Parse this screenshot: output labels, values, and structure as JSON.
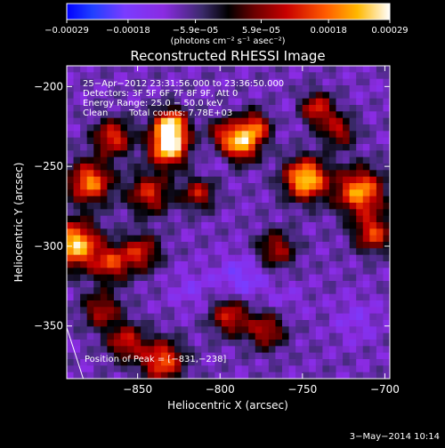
{
  "chart_data": {
    "type": "heatmap",
    "title": "Reconstructed RHESSI Image",
    "xlabel": "Heliocentric X (arcsec)",
    "ylabel": "Heliocentric Y (arcsec)",
    "xlim": [
      -893,
      -697
    ],
    "ylim": [
      -383,
      -187
    ],
    "x_ticks": [
      -850,
      -800,
      -750,
      -700
    ],
    "y_ticks": [
      -200,
      -250,
      -300,
      -350
    ],
    "x_tick_labels": [
      "−850",
      "−800",
      "−750",
      "−700"
    ],
    "y_tick_labels": [
      "−200",
      "−250",
      "−300",
      "−350"
    ],
    "colorbar": {
      "range": [
        -0.00029,
        0.00029
      ],
      "tick_values": [
        -0.00029,
        -0.00018,
        -5.9e-05,
        5.9e-05,
        0.00018,
        0.00029
      ],
      "tick_labels": [
        "−0.00029",
        "−0.00018",
        "−5.9e−05",
        "5.9e−05",
        "0.00018",
        "0.00029"
      ],
      "label": "(photons cm⁻² s⁻¹ asec⁻²)",
      "colormap": "rainbow-to-hot"
    },
    "annotations": {
      "time_range": "25−Apr−2012 23:31:56.000 to 23:36:50.000",
      "detectors": "Detectors: 3F 5F 6F 7F 8F 9F, Att 0",
      "energy_range": "Energy Range: 25.0 − 50.0 keV",
      "clean_label": "Clean",
      "total_counts": "Total counts: 7.78E+03",
      "peak_position": "Position of Peak = [−831,−238]"
    },
    "limb_line": {
      "x": [
        -893,
        -883
      ],
      "y": [
        -351,
        -383
      ]
    },
    "hotspots": [
      {
        "x": -831,
        "y": -238,
        "intensity": 0.00029,
        "spread": 8
      },
      {
        "x": -830,
        "y": -224,
        "intensity": 0.00025,
        "spread": 7
      },
      {
        "x": -879,
        "y": -260,
        "intensity": 0.0002,
        "spread": 9
      },
      {
        "x": -865,
        "y": -232,
        "intensity": 0.00014,
        "spread": 8
      },
      {
        "x": -888,
        "y": -299,
        "intensity": 0.00026,
        "spread": 10
      },
      {
        "x": -866,
        "y": -311,
        "intensity": 0.00012,
        "spread": 8
      },
      {
        "x": -843,
        "y": -267,
        "intensity": 0.00012,
        "spread": 9
      },
      {
        "x": -848,
        "y": -304,
        "intensity": 0.00011,
        "spread": 8
      },
      {
        "x": -797,
        "y": -230,
        "intensity": 0.00011,
        "spread": 7
      },
      {
        "x": -787,
        "y": -238,
        "intensity": 0.00017,
        "spread": 7
      },
      {
        "x": -779,
        "y": -226,
        "intensity": 0.00017,
        "spread": 7
      },
      {
        "x": -741,
        "y": -214,
        "intensity": 0.00013,
        "spread": 7
      },
      {
        "x": -748,
        "y": -258,
        "intensity": 0.00027,
        "spread": 9
      },
      {
        "x": -715,
        "y": -266,
        "intensity": 0.00022,
        "spread": 10
      },
      {
        "x": -707,
        "y": -292,
        "intensity": 0.00014,
        "spread": 8
      },
      {
        "x": -794,
        "y": -344,
        "intensity": 0.00012,
        "spread": 8
      },
      {
        "x": -772,
        "y": -353,
        "intensity": 0.0001,
        "spread": 8
      },
      {
        "x": -835,
        "y": -372,
        "intensity": 0.00017,
        "spread": 9
      },
      {
        "x": -857,
        "y": -360,
        "intensity": 0.00011,
        "spread": 8
      },
      {
        "x": -872,
        "y": -340,
        "intensity": 9e-05,
        "spread": 8
      },
      {
        "x": -813,
        "y": -267,
        "intensity": 0.0001,
        "spread": 7
      },
      {
        "x": -766,
        "y": -302,
        "intensity": 9e-05,
        "spread": 8
      },
      {
        "x": -728,
        "y": -228,
        "intensity": 9e-05,
        "spread": 7
      }
    ],
    "negative_spots": [
      {
        "x": -787,
        "y": -320,
        "intensity": -0.00018,
        "spread": 10
      },
      {
        "x": -818,
        "y": -327,
        "intensity": -0.00014,
        "spread": 9
      },
      {
        "x": -760,
        "y": -334,
        "intensity": -0.00012,
        "spread": 9
      },
      {
        "x": -717,
        "y": -346,
        "intensity": -0.00014,
        "spread": 10
      },
      {
        "x": -805,
        "y": -245,
        "intensity": -0.00012,
        "spread": 8
      },
      {
        "x": -760,
        "y": -219,
        "intensity": -0.00011,
        "spread": 8
      },
      {
        "x": -849,
        "y": -335,
        "intensity": -9e-05,
        "spread": 8
      },
      {
        "x": -713,
        "y": -200,
        "intensity": -0.0001,
        "spread": 8
      }
    ]
  },
  "footer": {
    "timestamp": "3−May−2014 10:14"
  }
}
